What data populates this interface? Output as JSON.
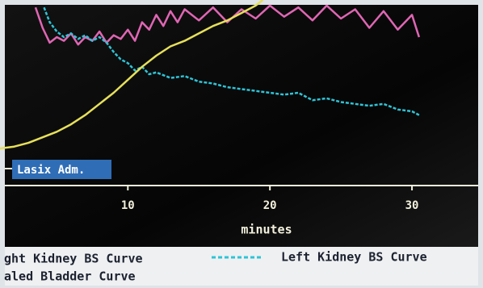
{
  "chart_data": {
    "type": "line",
    "xlabel": "minutes",
    "annotation": "Lasix Adm.",
    "xlim": [
      1,
      35
    ],
    "ylim": [
      0,
      100
    ],
    "xticks": [
      10,
      20,
      30
    ],
    "series": [
      {
        "name": "ght Kidney BS Curve",
        "color": "#e066b4",
        "x": [
          3.5,
          4.0,
          4.5,
          5.0,
          5.5,
          6.0,
          6.5,
          7.0,
          7.5,
          8.0,
          8.5,
          9.0,
          9.5,
          10.0,
          10.5,
          11.0,
          11.5,
          12.0,
          12.5,
          13.0,
          13.5,
          14.0,
          15.0,
          16.0,
          17.0,
          18.0,
          19.0,
          20.0,
          21.0,
          22.0,
          23.0,
          24.0,
          25.0,
          26.0,
          27.0,
          28.0,
          29.0,
          30.0,
          30.5
        ],
        "values": [
          96,
          85,
          77,
          80,
          78,
          82,
          76,
          80,
          78,
          83,
          77,
          81,
          79,
          84,
          78,
          88,
          84,
          92,
          86,
          94,
          88,
          95,
          89,
          96,
          88,
          95,
          90,
          97,
          91,
          96,
          89,
          97,
          90,
          95,
          85,
          94,
          84,
          92,
          80
        ]
      },
      {
        "name": "Left Kidney BS Curve",
        "color": "#2ec4d6",
        "x": [
          4.1,
          4.5,
          5.0,
          5.5,
          6.0,
          6.5,
          7.0,
          7.5,
          8.0,
          8.5,
          9.0,
          9.5,
          10.0,
          10.5,
          11.0,
          11.5,
          12.0,
          13.0,
          14.0,
          15.0,
          16.0,
          17.0,
          18.0,
          19.0,
          20.0,
          21.0,
          22.0,
          23.0,
          24.0,
          25.0,
          26.0,
          27.0,
          28.0,
          29.0,
          30.0,
          30.5
        ],
        "values": [
          96,
          88,
          83,
          80,
          82,
          79,
          81,
          78,
          80,
          77,
          72,
          68,
          66,
          62,
          64,
          60,
          61,
          58,
          59,
          56,
          55,
          53,
          52,
          51,
          50,
          49,
          50,
          46,
          47,
          45,
          44,
          43,
          44,
          41,
          40,
          38
        ]
      },
      {
        "name": "aled Bladder Curve",
        "color": "#e6e05a",
        "x": [
          1.0,
          2.0,
          3.0,
          4.0,
          5.0,
          6.0,
          7.0,
          8.0,
          9.0,
          10.0,
          11.0,
          12.0,
          13.0,
          14.0,
          15.0,
          16.0,
          17.0,
          18.0,
          19.0,
          19.5
        ],
        "values": [
          20,
          21,
          23,
          26,
          29,
          33,
          38,
          44,
          50,
          57,
          64,
          70,
          75,
          78,
          82,
          86,
          89,
          93,
          97,
          100
        ]
      }
    ]
  }
}
